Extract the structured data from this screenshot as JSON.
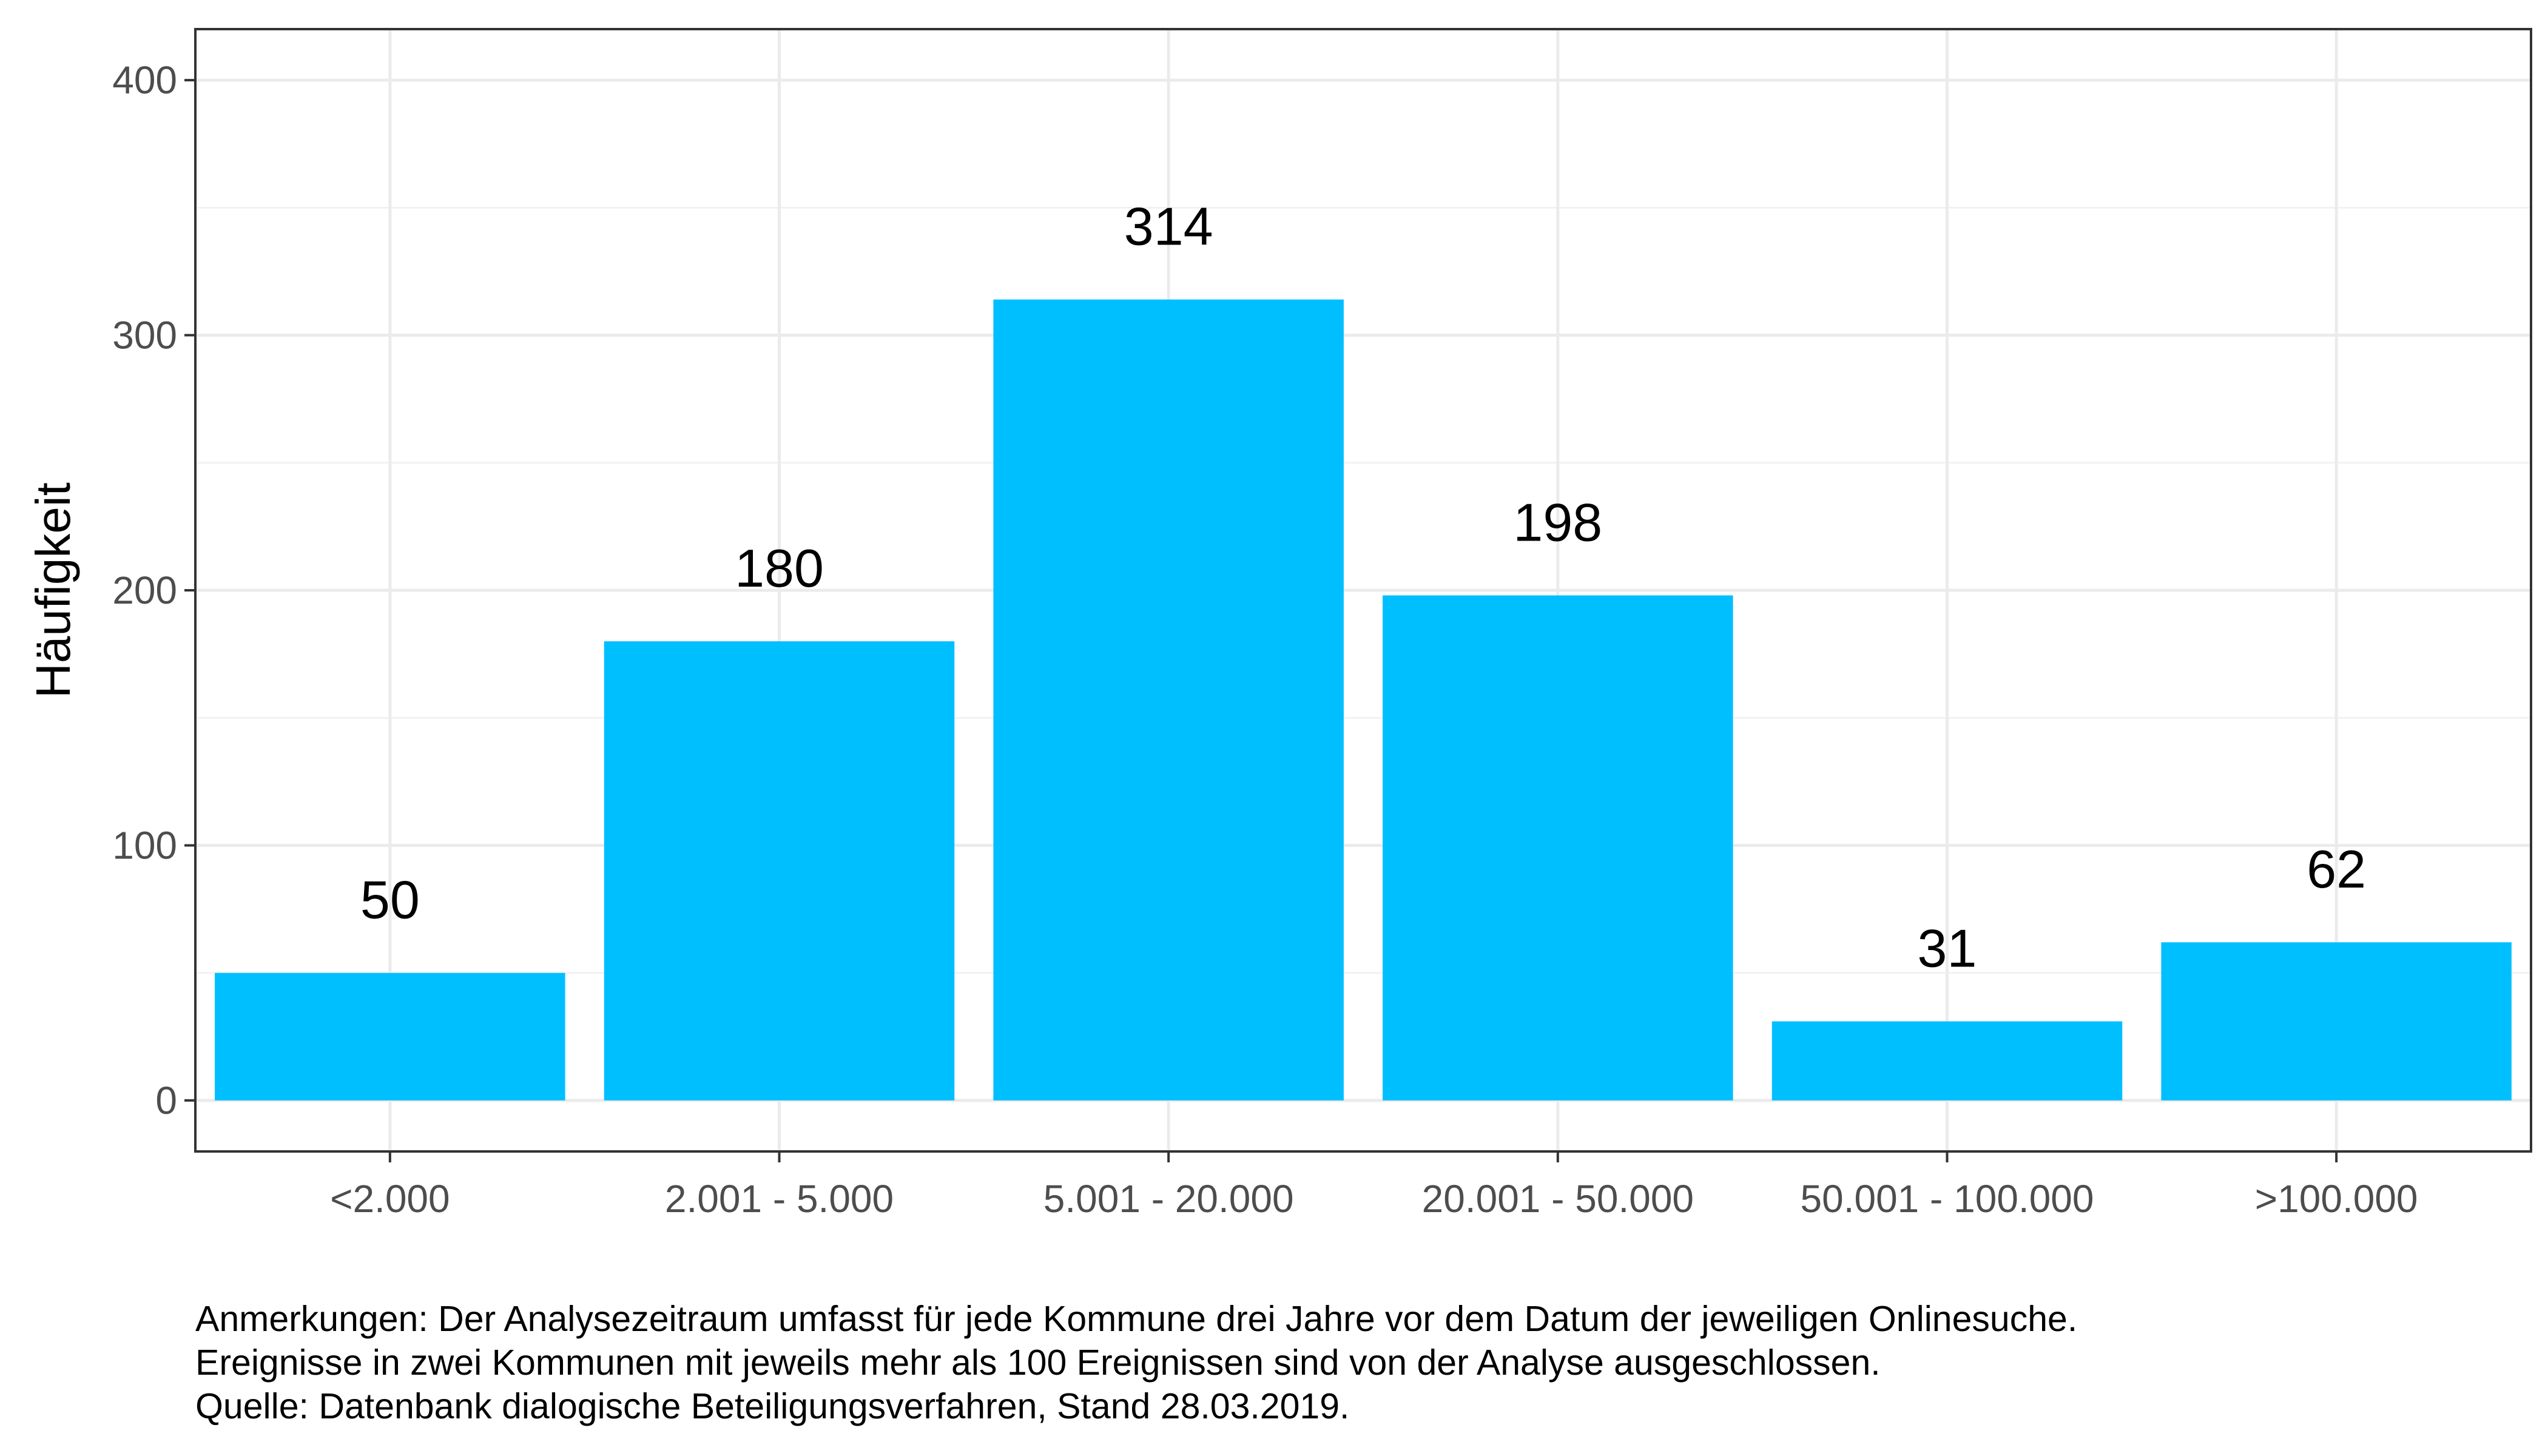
{
  "chart_data": {
    "type": "bar",
    "categories": [
      "<2.000",
      "2.001 - 5.000",
      "5.001 - 20.000",
      "20.001 - 50.000",
      "50.001 - 100.000",
      ">100.000"
    ],
    "values": [
      50,
      180,
      314,
      198,
      31,
      62
    ],
    "data_labels": [
      "50",
      "180",
      "314",
      "198",
      "31",
      "62"
    ],
    "xlabel": "",
    "ylabel": "Häufigkeit",
    "ylim": [
      -20,
      420
    ],
    "yticks": [
      0,
      100,
      200,
      300,
      400
    ],
    "ytick_labels": [
      "0",
      "100",
      "200",
      "300",
      "400"
    ],
    "grid": true,
    "bar_color": "#00BFFF"
  },
  "notes": [
    "Anmerkungen: Der Analysezeitraum umfasst für jede Kommune drei Jahre vor dem Datum der jeweiligen Onlinesuche.",
    "Ereignisse in zwei Kommunen mit jeweils mehr als 100 Ereignissen sind von der Analyse ausgeschlossen.",
    "Quelle: Datenbank dialogische Beteiligungsverfahren, Stand 28.03.2019."
  ]
}
